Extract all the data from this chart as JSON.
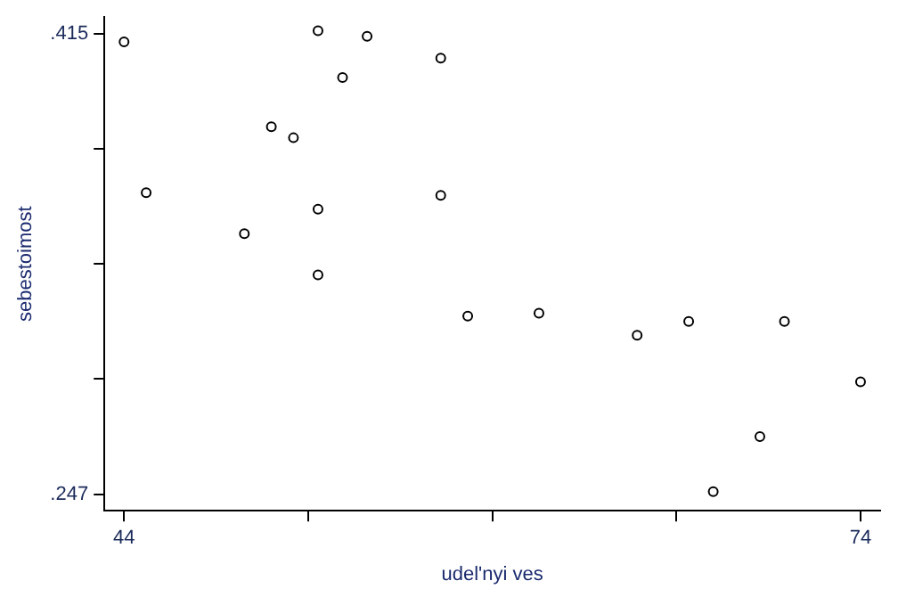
{
  "chart_data": {
    "type": "scatter",
    "xlabel": "udel'nyi ves",
    "ylabel": "sebestoimost",
    "xlim": [
      43.2,
      74.8
    ],
    "ylim": [
      0.241,
      0.421
    ],
    "xticks": [
      44,
      {
        "value": 51.5,
        "label": null
      },
      {
        "value": 59,
        "label": null
      },
      {
        "value": 66.5,
        "label": null
      },
      74
    ],
    "yticks": [
      {
        "value": 0.247,
        "label": ".247"
      },
      {
        "value": 0.289,
        "label": null
      },
      {
        "value": 0.331,
        "label": null
      },
      {
        "value": 0.373,
        "label": null
      },
      {
        "value": 0.415,
        "label": ".415"
      }
    ],
    "grid": false,
    "legend": false,
    "marker": "circle",
    "series": [
      {
        "color": "#000000",
        "x": [
          44,
          51.9,
          53.9,
          52.9,
          56.9,
          50.0,
          50.9,
          44.9,
          56.9,
          51.9,
          48.9,
          51.9,
          58.0,
          60.9,
          64.9,
          67.0,
          70.9,
          74.0,
          69.9,
          68.0
        ],
        "values": [
          0.412,
          0.416,
          0.414,
          0.399,
          0.406,
          0.381,
          0.377,
          0.357,
          0.356,
          0.351,
          0.342,
          0.327,
          0.312,
          0.313,
          0.305,
          0.31,
          0.31,
          0.288,
          0.268,
          0.248
        ]
      }
    ]
  }
}
